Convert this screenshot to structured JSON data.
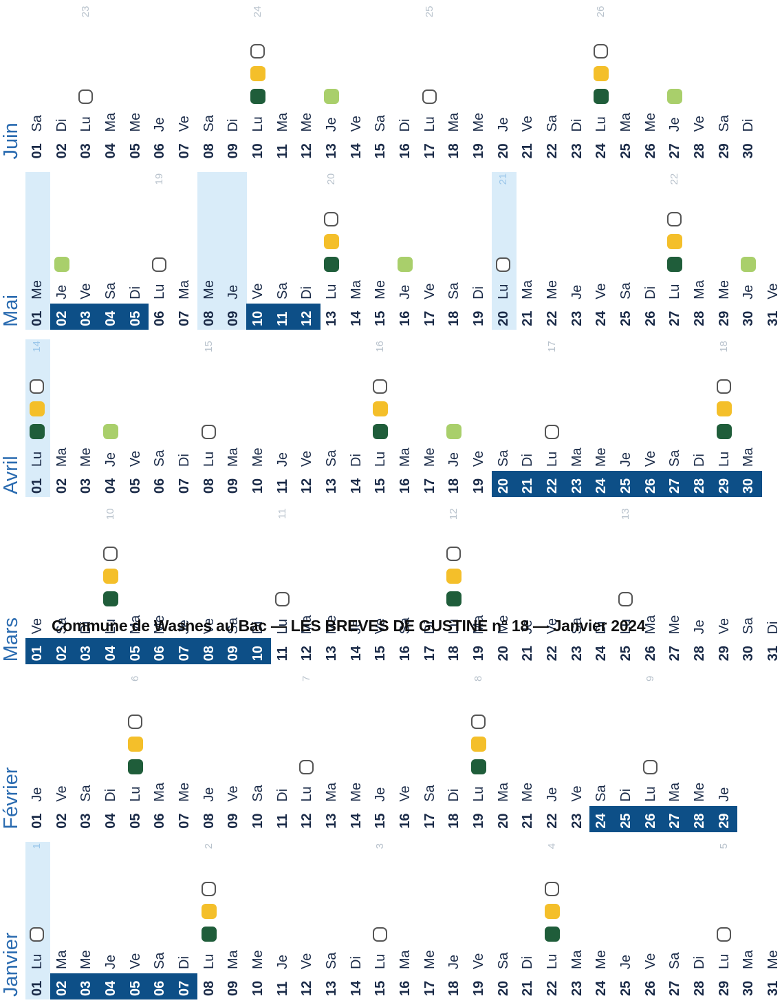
{
  "footer": "Commune de Wasnes au Bac — LES BREVES DE GUSTINE n° 18 — Janvier 2024",
  "months": [
    {
      "name": "Janvier",
      "days": [
        [
          "01",
          "Lu",
          "1"
        ],
        [
          "02",
          "Ma"
        ],
        [
          "03",
          "Me"
        ],
        [
          "04",
          "Je"
        ],
        [
          "05",
          "Ve"
        ],
        [
          "06",
          "Sa"
        ],
        [
          "07",
          "Di"
        ],
        [
          "08",
          "Lu",
          "2"
        ],
        [
          "09",
          "Ma"
        ],
        [
          "10",
          "Me"
        ],
        [
          "11",
          "Je"
        ],
        [
          "12",
          "Ve"
        ],
        [
          "13",
          "Sa"
        ],
        [
          "14",
          "Di"
        ],
        [
          "15",
          "Lu",
          "3"
        ],
        [
          "16",
          "Ma"
        ],
        [
          "17",
          "Me"
        ],
        [
          "18",
          "Je"
        ],
        [
          "19",
          "Ve"
        ],
        [
          "20",
          "Sa"
        ],
        [
          "21",
          "Di"
        ],
        [
          "22",
          "Lu",
          "4"
        ],
        [
          "23",
          "Ma"
        ],
        [
          "24",
          "Me"
        ],
        [
          "25",
          "Je"
        ],
        [
          "26",
          "Ve"
        ],
        [
          "27",
          "Sa"
        ],
        [
          "28",
          "Di"
        ],
        [
          "29",
          "Lu",
          "5"
        ],
        [
          "30",
          "Ma"
        ],
        [
          "31",
          "Me"
        ]
      ]
    },
    {
      "name": "Février",
      "days": [
        [
          "01",
          "Je"
        ],
        [
          "02",
          "Ve"
        ],
        [
          "03",
          "Sa"
        ],
        [
          "04",
          "Di"
        ],
        [
          "05",
          "Lu",
          "6"
        ],
        [
          "06",
          "Ma"
        ],
        [
          "07",
          "Me"
        ],
        [
          "08",
          "Je"
        ],
        [
          "09",
          "Ve"
        ],
        [
          "10",
          "Sa"
        ],
        [
          "11",
          "Di"
        ],
        [
          "12",
          "Lu",
          "7"
        ],
        [
          "13",
          "Ma"
        ],
        [
          "14",
          "Me"
        ],
        [
          "15",
          "Je"
        ],
        [
          "16",
          "Ve"
        ],
        [
          "17",
          "Sa"
        ],
        [
          "18",
          "Di"
        ],
        [
          "19",
          "Lu",
          "8"
        ],
        [
          "20",
          "Ma"
        ],
        [
          "21",
          "Me"
        ],
        [
          "22",
          "Je"
        ],
        [
          "23",
          "Ve"
        ],
        [
          "24",
          "Sa"
        ],
        [
          "25",
          "Di"
        ],
        [
          "26",
          "Lu",
          "9"
        ],
        [
          "27",
          "Ma"
        ],
        [
          "28",
          "Me"
        ],
        [
          "29",
          "Je"
        ]
      ]
    },
    {
      "name": "Mars",
      "days": [
        [
          "01",
          "Ve"
        ],
        [
          "02",
          "Sa"
        ],
        [
          "03",
          "Di"
        ],
        [
          "04",
          "Lu",
          "10"
        ],
        [
          "05",
          "Ma"
        ],
        [
          "06",
          "Me"
        ],
        [
          "07",
          "Je"
        ],
        [
          "08",
          "Ve"
        ],
        [
          "09",
          "Sa"
        ],
        [
          "10",
          "Di"
        ],
        [
          "11",
          "Lu",
          "11"
        ],
        [
          "12",
          "Ma"
        ],
        [
          "13",
          "Me"
        ],
        [
          "14",
          "Je"
        ],
        [
          "15",
          "Ve"
        ],
        [
          "16",
          "Sa"
        ],
        [
          "17",
          "Di"
        ],
        [
          "18",
          "Lu",
          "12"
        ],
        [
          "19",
          "Ma"
        ],
        [
          "20",
          "Me"
        ],
        [
          "21",
          "Je"
        ],
        [
          "22",
          "Ve"
        ],
        [
          "23",
          "Sa"
        ],
        [
          "24",
          "Di"
        ],
        [
          "25",
          "Lu",
          "13"
        ],
        [
          "26",
          "Ma"
        ],
        [
          "27",
          "Me"
        ],
        [
          "28",
          "Je"
        ],
        [
          "29",
          "Ve"
        ],
        [
          "30",
          "Sa"
        ],
        [
          "31",
          "Di"
        ]
      ]
    },
    {
      "name": "Avril",
      "days": [
        [
          "01",
          "Lu",
          "14"
        ],
        [
          "02",
          "Ma"
        ],
        [
          "03",
          "Me"
        ],
        [
          "04",
          "Je"
        ],
        [
          "05",
          "Ve"
        ],
        [
          "06",
          "Sa"
        ],
        [
          "07",
          "Di"
        ],
        [
          "08",
          "Lu",
          "15"
        ],
        [
          "09",
          "Ma"
        ],
        [
          "10",
          "Me"
        ],
        [
          "11",
          "Je"
        ],
        [
          "12",
          "Ve"
        ],
        [
          "13",
          "Sa"
        ],
        [
          "14",
          "Di"
        ],
        [
          "15",
          "Lu",
          "16"
        ],
        [
          "16",
          "Ma"
        ],
        [
          "17",
          "Me"
        ],
        [
          "18",
          "Je"
        ],
        [
          "19",
          "Ve"
        ],
        [
          "20",
          "Sa"
        ],
        [
          "21",
          "Di"
        ],
        [
          "22",
          "Lu",
          "17"
        ],
        [
          "23",
          "Ma"
        ],
        [
          "24",
          "Me"
        ],
        [
          "25",
          "Je"
        ],
        [
          "26",
          "Ve"
        ],
        [
          "27",
          "Sa"
        ],
        [
          "28",
          "Di"
        ],
        [
          "29",
          "Lu",
          "18"
        ],
        [
          "30",
          "Ma"
        ]
      ]
    },
    {
      "name": "Mai",
      "days": [
        [
          "01",
          "Me"
        ],
        [
          "02",
          "Je"
        ],
        [
          "03",
          "Ve"
        ],
        [
          "04",
          "Sa"
        ],
        [
          "05",
          "Di"
        ],
        [
          "06",
          "Lu",
          "19"
        ],
        [
          "07",
          "Ma"
        ],
        [
          "08",
          "Me"
        ],
        [
          "09",
          "Je"
        ],
        [
          "10",
          "Ve"
        ],
        [
          "11",
          "Sa"
        ],
        [
          "12",
          "Di"
        ],
        [
          "13",
          "Lu",
          "20"
        ],
        [
          "14",
          "Ma"
        ],
        [
          "15",
          "Me"
        ],
        [
          "16",
          "Je"
        ],
        [
          "17",
          "Ve"
        ],
        [
          "18",
          "Sa"
        ],
        [
          "19",
          "Di"
        ],
        [
          "20",
          "Lu",
          "21"
        ],
        [
          "21",
          "Ma"
        ],
        [
          "22",
          "Me"
        ],
        [
          "23",
          "Je"
        ],
        [
          "24",
          "Ve"
        ],
        [
          "25",
          "Sa"
        ],
        [
          "26",
          "Di"
        ],
        [
          "27",
          "Lu",
          "22"
        ],
        [
          "28",
          "Ma"
        ],
        [
          "29",
          "Me"
        ],
        [
          "30",
          "Je"
        ],
        [
          "31",
          "Ve"
        ]
      ]
    },
    {
      "name": "Juin",
      "days": [
        [
          "01",
          "Sa"
        ],
        [
          "02",
          "Di"
        ],
        [
          "03",
          "Lu",
          "23"
        ],
        [
          "04",
          "Ma"
        ],
        [
          "05",
          "Me"
        ],
        [
          "06",
          "Je"
        ],
        [
          "07",
          "Ve"
        ],
        [
          "08",
          "Sa"
        ],
        [
          "09",
          "Di"
        ],
        [
          "10",
          "Lu",
          "24"
        ],
        [
          "11",
          "Ma"
        ],
        [
          "12",
          "Me"
        ],
        [
          "13",
          "Je"
        ],
        [
          "14",
          "Ve"
        ],
        [
          "15",
          "Sa"
        ],
        [
          "16",
          "Di"
        ],
        [
          "17",
          "Lu",
          "25"
        ],
        [
          "18",
          "Ma"
        ],
        [
          "19",
          "Me"
        ],
        [
          "20",
          "Je"
        ],
        [
          "21",
          "Ve"
        ],
        [
          "22",
          "Sa"
        ],
        [
          "23",
          "Di"
        ],
        [
          "24",
          "Lu",
          "26"
        ],
        [
          "25",
          "Ma"
        ],
        [
          "26",
          "Me"
        ],
        [
          "27",
          "Je"
        ],
        [
          "28",
          "Ve"
        ],
        [
          "29",
          "Sa"
        ],
        [
          "30",
          "Di"
        ]
      ]
    }
  ]
}
